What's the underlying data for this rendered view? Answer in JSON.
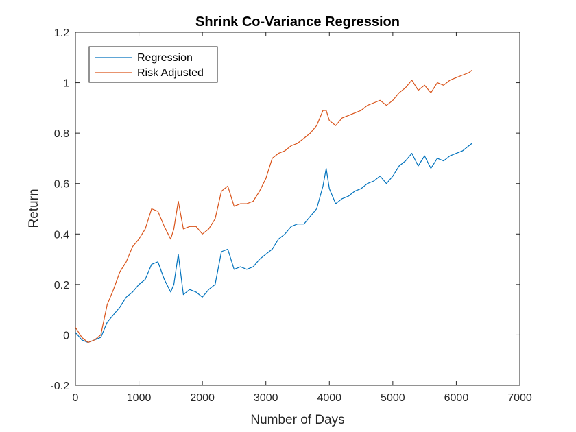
{
  "chart_data": {
    "type": "line",
    "title": "Shrink Co-Variance Regression",
    "xlabel": "Number of Days",
    "ylabel": "Return",
    "xlim": [
      0,
      7000
    ],
    "ylim": [
      -0.2,
      1.2
    ],
    "xticks": [
      0,
      1000,
      2000,
      3000,
      4000,
      5000,
      6000,
      7000
    ],
    "yticks": [
      -0.2,
      0,
      0.2,
      0.4,
      0.6,
      0.8,
      1,
      1.2
    ],
    "xtick_labels": [
      "0",
      "1000",
      "2000",
      "3000",
      "4000",
      "5000",
      "6000",
      "7000"
    ],
    "ytick_labels": [
      "-0.2",
      "0",
      "0.2",
      "0.4",
      "0.6",
      "0.8",
      "1",
      "1.2"
    ],
    "grid": false,
    "legend_position": "top-left",
    "series": [
      {
        "name": "Regression",
        "color": "#0072BD",
        "x": [
          0,
          100,
          200,
          300,
          400,
          500,
          600,
          700,
          800,
          900,
          1000,
          1100,
          1200,
          1300,
          1400,
          1500,
          1550,
          1620,
          1700,
          1800,
          1900,
          2000,
          2100,
          2200,
          2300,
          2400,
          2500,
          2600,
          2700,
          2800,
          2900,
          3000,
          3100,
          3200,
          3300,
          3400,
          3500,
          3600,
          3700,
          3800,
          3900,
          3950,
          4000,
          4100,
          4200,
          4300,
          4400,
          4500,
          4600,
          4700,
          4800,
          4900,
          5000,
          5100,
          5200,
          5300,
          5400,
          5500,
          5600,
          5700,
          5800,
          5900,
          6000,
          6100,
          6200,
          6250
        ],
        "y": [
          0.01,
          -0.02,
          -0.03,
          -0.02,
          -0.01,
          0.05,
          0.08,
          0.11,
          0.15,
          0.17,
          0.2,
          0.22,
          0.28,
          0.29,
          0.22,
          0.17,
          0.2,
          0.32,
          0.16,
          0.18,
          0.17,
          0.15,
          0.18,
          0.2,
          0.33,
          0.34,
          0.26,
          0.27,
          0.26,
          0.27,
          0.3,
          0.32,
          0.34,
          0.38,
          0.4,
          0.43,
          0.44,
          0.44,
          0.47,
          0.5,
          0.59,
          0.66,
          0.58,
          0.52,
          0.54,
          0.55,
          0.57,
          0.58,
          0.6,
          0.61,
          0.63,
          0.6,
          0.63,
          0.67,
          0.69,
          0.72,
          0.67,
          0.71,
          0.66,
          0.7,
          0.69,
          0.71,
          0.72,
          0.73,
          0.75,
          0.76
        ]
      },
      {
        "name": "Risk Adjusted",
        "color": "#D95319",
        "x": [
          0,
          100,
          200,
          300,
          400,
          500,
          600,
          700,
          800,
          900,
          1000,
          1100,
          1200,
          1300,
          1400,
          1500,
          1550,
          1620,
          1700,
          1800,
          1900,
          2000,
          2100,
          2200,
          2300,
          2400,
          2500,
          2600,
          2700,
          2800,
          2900,
          3000,
          3100,
          3200,
          3300,
          3400,
          3500,
          3600,
          3700,
          3800,
          3900,
          3950,
          4000,
          4100,
          4200,
          4300,
          4400,
          4500,
          4600,
          4700,
          4800,
          4900,
          5000,
          5100,
          5200,
          5300,
          5400,
          5500,
          5600,
          5700,
          5800,
          5900,
          6000,
          6100,
          6200,
          6250
        ],
        "y": [
          0.03,
          -0.01,
          -0.03,
          -0.02,
          0.0,
          0.12,
          0.18,
          0.25,
          0.29,
          0.35,
          0.38,
          0.42,
          0.5,
          0.49,
          0.43,
          0.38,
          0.42,
          0.53,
          0.42,
          0.43,
          0.43,
          0.4,
          0.42,
          0.46,
          0.57,
          0.59,
          0.51,
          0.52,
          0.52,
          0.53,
          0.57,
          0.62,
          0.7,
          0.72,
          0.73,
          0.75,
          0.76,
          0.78,
          0.8,
          0.83,
          0.89,
          0.89,
          0.85,
          0.83,
          0.86,
          0.87,
          0.88,
          0.89,
          0.91,
          0.92,
          0.93,
          0.91,
          0.93,
          0.96,
          0.98,
          1.01,
          0.97,
          0.99,
          0.96,
          1.0,
          0.99,
          1.01,
          1.02,
          1.03,
          1.04,
          1.05
        ]
      }
    ]
  }
}
